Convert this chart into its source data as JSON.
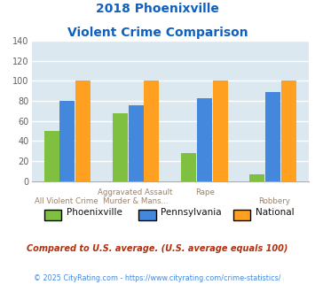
{
  "title_line1": "2018 Phoenixville",
  "title_line2": "Violent Crime Comparison",
  "series": {
    "Phoenixville": [
      50,
      68,
      28,
      7
    ],
    "Pennsylvania": [
      80,
      76,
      83,
      89
    ],
    "National": [
      100,
      100,
      100,
      100
    ]
  },
  "colors": {
    "Phoenixville": "#80C040",
    "Pennsylvania": "#4488DD",
    "National": "#FFA020"
  },
  "ylim": [
    0,
    140
  ],
  "yticks": [
    0,
    20,
    40,
    60,
    80,
    100,
    120,
    140
  ],
  "title_color": "#1060C0",
  "background_color": "#DCE8F0",
  "grid_color": "#FFFFFF",
  "top_labels": [
    "",
    "Aggravated Assault",
    "Rape",
    ""
  ],
  "bottom_labels": [
    "All Violent Crime",
    "Murder & Mans...",
    "",
    "Robbery"
  ],
  "top_label_color": "#A08060",
  "bottom_label_color": "#A08060",
  "footnote1": "Compared to U.S. average. (U.S. average equals 100)",
  "footnote2": "© 2025 CityRating.com - https://www.cityrating.com/crime-statistics/",
  "footnote1_color": "#B03010",
  "footnote2_color": "#4488DD",
  "legend_text_color": "#000000"
}
